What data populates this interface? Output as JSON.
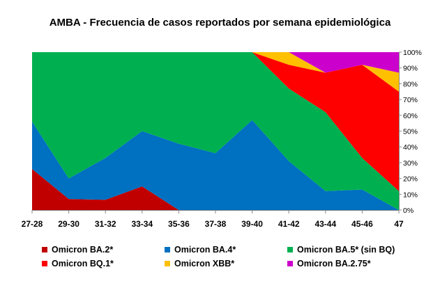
{
  "chart_data": {
    "type": "area",
    "stacked": true,
    "percent": true,
    "title": "AMBA - Frecuencia de casos reportados por semana epidemiológica",
    "xlabel": "",
    "ylabel": "",
    "categories": [
      "27-28",
      "29-30",
      "31-32",
      "33-34",
      "35-36",
      "37-38",
      "39-40",
      "41-42",
      "43-44",
      "45-46",
      "47"
    ],
    "y_ticks": [
      "0%",
      "10%",
      "20%",
      "30%",
      "40%",
      "50%",
      "60%",
      "70%",
      "80%",
      "90%",
      "100%"
    ],
    "ylim": [
      0,
      100
    ],
    "y_axis_side": "right",
    "grid": false,
    "legend_position": "bottom",
    "series": [
      {
        "name": "Omicron BA.2*",
        "color": "#c00000",
        "values": [
          26,
          7,
          6.5,
          15,
          0,
          0,
          0,
          0,
          0,
          0,
          0
        ]
      },
      {
        "name": "Omicron BA.4*",
        "color": "#0070c0",
        "values": [
          30,
          13,
          26.5,
          35,
          42,
          36,
          57,
          31,
          12,
          13,
          0
        ]
      },
      {
        "name": "Omicron BA.5* (sin BQ)",
        "color": "#00b050",
        "values": [
          44,
          80,
          67,
          50,
          58,
          64,
          43,
          46,
          50,
          20,
          12
        ]
      },
      {
        "name": "Omicron BQ.1*",
        "color": "#ff0000",
        "values": [
          0,
          0,
          0,
          0,
          0,
          0,
          0,
          15,
          25,
          59,
          63
        ]
      },
      {
        "name": "Omicron XBB*",
        "color": "#ffc000",
        "values": [
          0,
          0,
          0,
          0,
          0,
          0,
          0,
          8,
          0,
          0,
          12
        ]
      },
      {
        "name": "Omicron BA.2.75*",
        "color": "#cc00cc",
        "values": [
          0,
          0,
          0,
          0,
          0,
          0,
          0,
          0,
          13,
          8,
          13
        ]
      }
    ]
  }
}
